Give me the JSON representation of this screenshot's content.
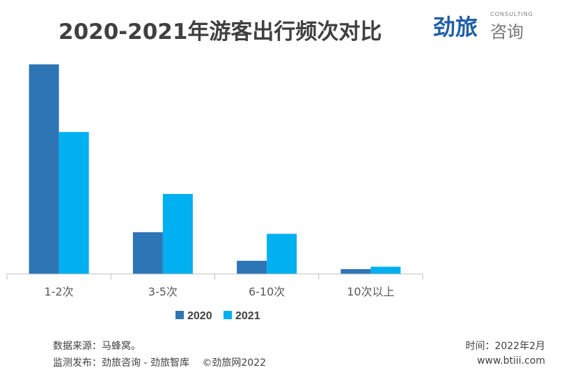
{
  "chart_data": {
    "type": "bar",
    "title": "2020-2021年游客出行频次对比",
    "categories": [
      "1-2次",
      "3-5次",
      "6-10次",
      "10次以上"
    ],
    "series": [
      {
        "name": "2020",
        "values": [
          77.8,
          15.5,
          4.9,
          1.8
        ],
        "color": "#2e75b6"
      },
      {
        "name": "2021",
        "values": [
          52.7,
          29.7,
          14.9,
          2.7
        ],
        "color": "#00b0f0"
      }
    ],
    "ylim": [
      0,
      80
    ],
    "grid": false,
    "legend": "bottom",
    "xlabel": "",
    "ylabel": ""
  },
  "logo": {
    "cn_brand": "劲旅",
    "en": "CONSULTING",
    "cn_sub": "咨询"
  },
  "footer": {
    "source": "数据来源：马蜂窝。",
    "publisher": "监测发布：劲旅咨询 - 劲旅智库　 ©劲旅网2022",
    "date": "时间：2022年2月",
    "website": "www.btiii.com"
  }
}
